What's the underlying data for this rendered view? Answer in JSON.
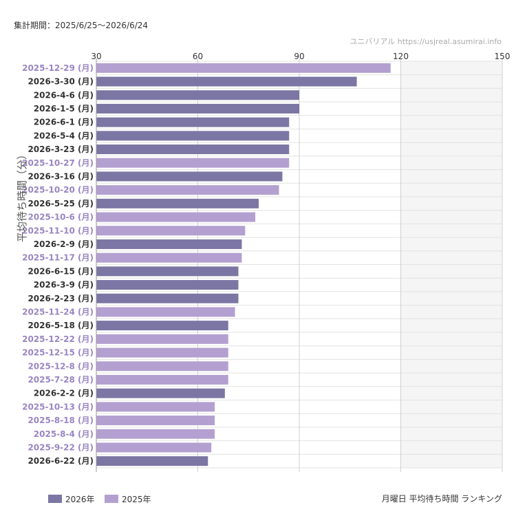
{
  "header": {
    "period": "集計期間：2025/6/25〜2026/6/24",
    "site": "ユニバリアル  https://usjreal.asumirai.info"
  },
  "footer": {
    "chart_subtitle": "月曜日 平均待ち時間 ランキング"
  },
  "colors": {
    "series_2026": "#7b76a3",
    "series_2025": "#b3a0d0",
    "label_2026": "#333333",
    "label_2025": "#9a86c2",
    "shade": "#f5f5f5",
    "grid": "#e2e2e2"
  },
  "chart_data": {
    "type": "bar",
    "orientation": "horizontal",
    "xlim": [
      30,
      150
    ],
    "xticks": [
      30,
      60,
      90,
      120,
      150
    ],
    "xaxis_position": "top",
    "shaded_range": [
      120,
      150
    ],
    "ylabel": "平均待ち時間（分）",
    "legend_position": "bottom-left",
    "legend": [
      {
        "name": "2026年",
        "series": "2026"
      },
      {
        "name": "2025年",
        "series": "2025"
      }
    ],
    "bars": [
      {
        "label": "2025-12-29 (月)",
        "value": 117,
        "series": "2025"
      },
      {
        "label": "2026-3-30 (月)",
        "value": 107,
        "series": "2026"
      },
      {
        "label": "2026-4-6 (月)",
        "value": 90,
        "series": "2026"
      },
      {
        "label": "2026-1-5 (月)",
        "value": 90,
        "series": "2026"
      },
      {
        "label": "2026-6-1 (月)",
        "value": 87,
        "series": "2026"
      },
      {
        "label": "2026-5-4 (月)",
        "value": 87,
        "series": "2026"
      },
      {
        "label": "2026-3-23 (月)",
        "value": 87,
        "series": "2026"
      },
      {
        "label": "2025-10-27 (月)",
        "value": 87,
        "series": "2025"
      },
      {
        "label": "2026-3-16 (月)",
        "value": 85,
        "series": "2026"
      },
      {
        "label": "2025-10-20 (月)",
        "value": 84,
        "series": "2025"
      },
      {
        "label": "2026-5-25 (月)",
        "value": 78,
        "series": "2026"
      },
      {
        "label": "2025-10-6 (月)",
        "value": 77,
        "series": "2025"
      },
      {
        "label": "2025-11-10 (月)",
        "value": 74,
        "series": "2025"
      },
      {
        "label": "2026-2-9 (月)",
        "value": 73,
        "series": "2026"
      },
      {
        "label": "2025-11-17 (月)",
        "value": 73,
        "series": "2025"
      },
      {
        "label": "2026-6-15 (月)",
        "value": 72,
        "series": "2026"
      },
      {
        "label": "2026-3-9 (月)",
        "value": 72,
        "series": "2026"
      },
      {
        "label": "2026-2-23 (月)",
        "value": 72,
        "series": "2026"
      },
      {
        "label": "2025-11-24 (月)",
        "value": 71,
        "series": "2025"
      },
      {
        "label": "2026-5-18 (月)",
        "value": 69,
        "series": "2026"
      },
      {
        "label": "2025-12-22 (月)",
        "value": 69,
        "series": "2025"
      },
      {
        "label": "2025-12-15 (月)",
        "value": 69,
        "series": "2025"
      },
      {
        "label": "2025-12-8 (月)",
        "value": 69,
        "series": "2025"
      },
      {
        "label": "2025-7-28 (月)",
        "value": 69,
        "series": "2025"
      },
      {
        "label": "2026-2-2 (月)",
        "value": 68,
        "series": "2026"
      },
      {
        "label": "2025-10-13 (月)",
        "value": 65,
        "series": "2025"
      },
      {
        "label": "2025-8-18 (月)",
        "value": 65,
        "series": "2025"
      },
      {
        "label": "2025-8-4 (月)",
        "value": 65,
        "series": "2025"
      },
      {
        "label": "2025-9-22 (月)",
        "value": 64,
        "series": "2025"
      },
      {
        "label": "2026-6-22 (月)",
        "value": 63,
        "series": "2026"
      }
    ]
  }
}
